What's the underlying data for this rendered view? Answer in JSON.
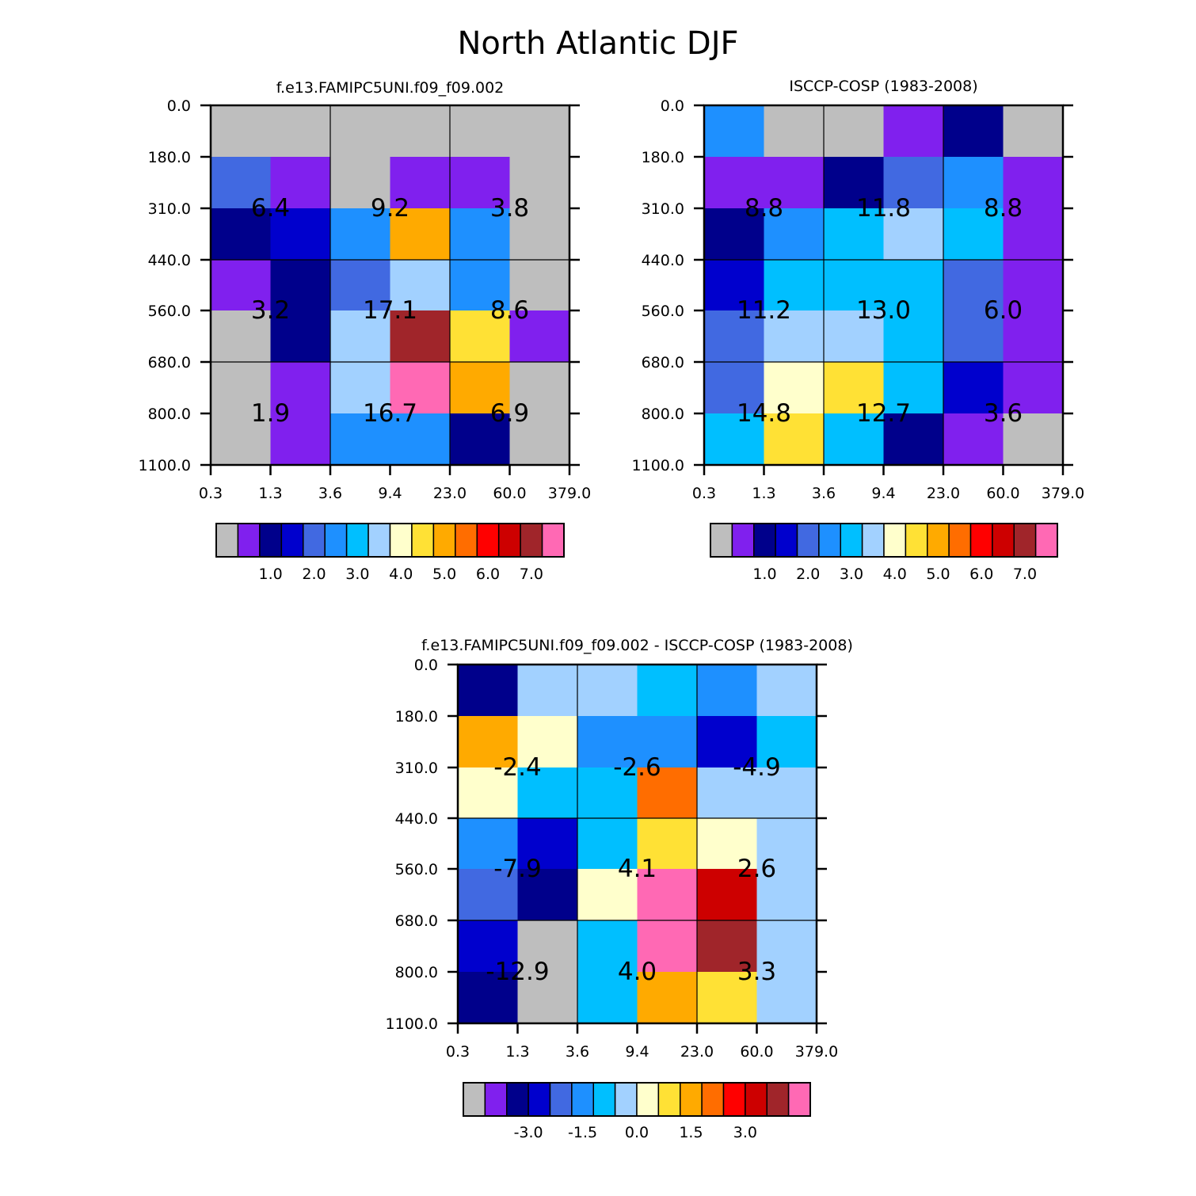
{
  "title": "North Atlantic DJF",
  "colors": {
    "missing": "#bebebe",
    "palette": [
      "#bebebe",
      "#8020ee",
      "#00008b",
      "#0000cd",
      "#4169e1",
      "#1e90ff",
      "#00bfff",
      "#a2d1ff",
      "#ffffcc",
      "#ffe135",
      "#ffaa00",
      "#ff6d00",
      "#ff0000",
      "#cd0000",
      "#a0252a",
      "#ff69b4"
    ]
  },
  "chart_data": [
    {
      "type": "heatmap",
      "title": "f.e13.FAMIPC5UNI.f09_f09.002",
      "x_ticks": [
        "0.3",
        "1.3",
        "3.6",
        "9.4",
        "23.0",
        "60.0",
        "379.0"
      ],
      "y_ticks": [
        "0.0",
        "180.0",
        "310.0",
        "440.0",
        "560.0",
        "680.0",
        "800.0",
        "1100.0"
      ],
      "cells": [
        [
          0,
          0,
          0,
          0,
          0,
          0
        ],
        [
          4,
          1,
          0,
          1,
          1,
          0
        ],
        [
          2,
          3,
          5,
          10,
          5,
          0
        ],
        [
          1,
          2,
          4,
          7,
          5,
          0
        ],
        [
          0,
          2,
          7,
          14,
          9,
          1
        ],
        [
          0,
          1,
          7,
          15,
          10,
          0
        ],
        [
          0,
          1,
          5,
          5,
          2,
          0
        ]
      ],
      "annotations": [
        [
          "6.4",
          "9.2",
          "3.8"
        ],
        [
          "3.2",
          "17.1",
          "8.6"
        ],
        [
          "1.9",
          "16.7",
          "6.9"
        ]
      ],
      "colorbar_labels": [
        "1.0",
        "2.0",
        "3.0",
        "4.0",
        "5.0",
        "6.0",
        "7.0"
      ]
    },
    {
      "type": "heatmap",
      "title": "ISCCP-COSP (1983-2008)",
      "x_ticks": [
        "0.3",
        "1.3",
        "3.6",
        "9.4",
        "23.0",
        "60.0",
        "379.0"
      ],
      "y_ticks": [
        "0.0",
        "180.0",
        "310.0",
        "440.0",
        "560.0",
        "680.0",
        "800.0",
        "1100.0"
      ],
      "cells": [
        [
          5,
          0,
          0,
          1,
          2,
          0
        ],
        [
          1,
          1,
          2,
          4,
          5,
          1
        ],
        [
          2,
          5,
          6,
          7,
          6,
          1
        ],
        [
          3,
          6,
          6,
          6,
          4,
          1
        ],
        [
          4,
          7,
          7,
          6,
          4,
          1
        ],
        [
          4,
          8,
          9,
          6,
          3,
          1
        ],
        [
          6,
          9,
          6,
          2,
          1,
          0
        ]
      ],
      "annotations": [
        [
          "8.8",
          "11.8",
          "8.8"
        ],
        [
          "11.2",
          "13.0",
          "6.0"
        ],
        [
          "14.8",
          "12.7",
          "3.6"
        ]
      ],
      "colorbar_labels": [
        "1.0",
        "2.0",
        "3.0",
        "4.0",
        "5.0",
        "6.0",
        "7.0"
      ]
    },
    {
      "type": "heatmap",
      "title": "f.e13.FAMIPC5UNI.f09_f09.002 - ISCCP-COSP (1983-2008)",
      "x_ticks": [
        "0.3",
        "1.3",
        "3.6",
        "9.4",
        "23.0",
        "60.0",
        "379.0"
      ],
      "y_ticks": [
        "0.0",
        "180.0",
        "310.0",
        "440.0",
        "560.0",
        "680.0",
        "800.0",
        "1100.0"
      ],
      "cells": [
        [
          2,
          7,
          7,
          6,
          5,
          7
        ],
        [
          10,
          8,
          5,
          5,
          3,
          6
        ],
        [
          8,
          6,
          6,
          11,
          7,
          7
        ],
        [
          5,
          3,
          6,
          9,
          8,
          7
        ],
        [
          4,
          2,
          8,
          15,
          13,
          7
        ],
        [
          3,
          0,
          6,
          15,
          14,
          7
        ],
        [
          2,
          0,
          6,
          10,
          9,
          7
        ]
      ],
      "annotations": [
        [
          "-2.4",
          "-2.6",
          "-4.9"
        ],
        [
          "-7.9",
          "4.1",
          "2.6"
        ],
        [
          "-12.9",
          "4.0",
          "3.3"
        ]
      ],
      "colorbar_labels": [
        "-3.0",
        "-1.5",
        "0.0",
        "1.5",
        "3.0"
      ]
    }
  ]
}
